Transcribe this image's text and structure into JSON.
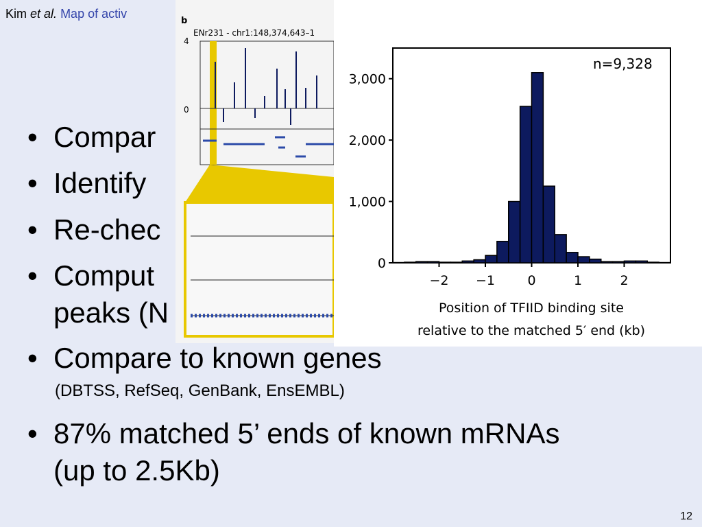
{
  "citation": {
    "authors": "Kim",
    "etal": "et al.",
    "title": "Map of activ"
  },
  "bullets": [
    "Compar",
    "Identify",
    "Re-chec",
    "Comput",
    "peaks (N",
    "Compare to known genes",
    "(DBTSS, RefSeq, GenBank, EnsEMBL)",
    "87% matched 5’ ends of known mRNAs",
    "(up to 2.5Kb)"
  ],
  "panel_b": {
    "label": "b",
    "track": "ENr231 - chr1:148,374,643–1",
    "y_top": "4",
    "y_zero": "0"
  },
  "chart_data": {
    "type": "histogram",
    "annotation": "n=9,328",
    "x_label": [
      "Position of TFIID binding site",
      "relative to the matched 5′ end (kb)"
    ],
    "bins": [
      -3,
      -2.75,
      -2.5,
      -2.25,
      -2,
      -1.75,
      -1.5,
      -1.25,
      -1,
      -0.75,
      -0.5,
      -0.25,
      0,
      0.25,
      0.5,
      0.75,
      1,
      1.25,
      1.5,
      1.75,
      2,
      2.25,
      2.5,
      2.75,
      3
    ],
    "values": [
      5,
      10,
      20,
      20,
      10,
      10,
      30,
      50,
      120,
      350,
      1000,
      2550,
      3100,
      1250,
      460,
      170,
      100,
      60,
      20,
      20,
      30,
      30,
      10,
      5
    ],
    "color": "#0d1a5e",
    "xlim": [
      -3,
      3
    ],
    "ylim": [
      0,
      3500
    ],
    "xticks": [
      {
        "value": -2,
        "label": "−2"
      },
      {
        "value": -1,
        "label": "−1"
      },
      0,
      1,
      2
    ],
    "yticks": [
      0,
      {
        "value": 1000,
        "label": "1,000"
      },
      {
        "value": 2000,
        "label": "2,000"
      },
      {
        "value": 3000,
        "label": "3,000"
      }
    ]
  }
}
